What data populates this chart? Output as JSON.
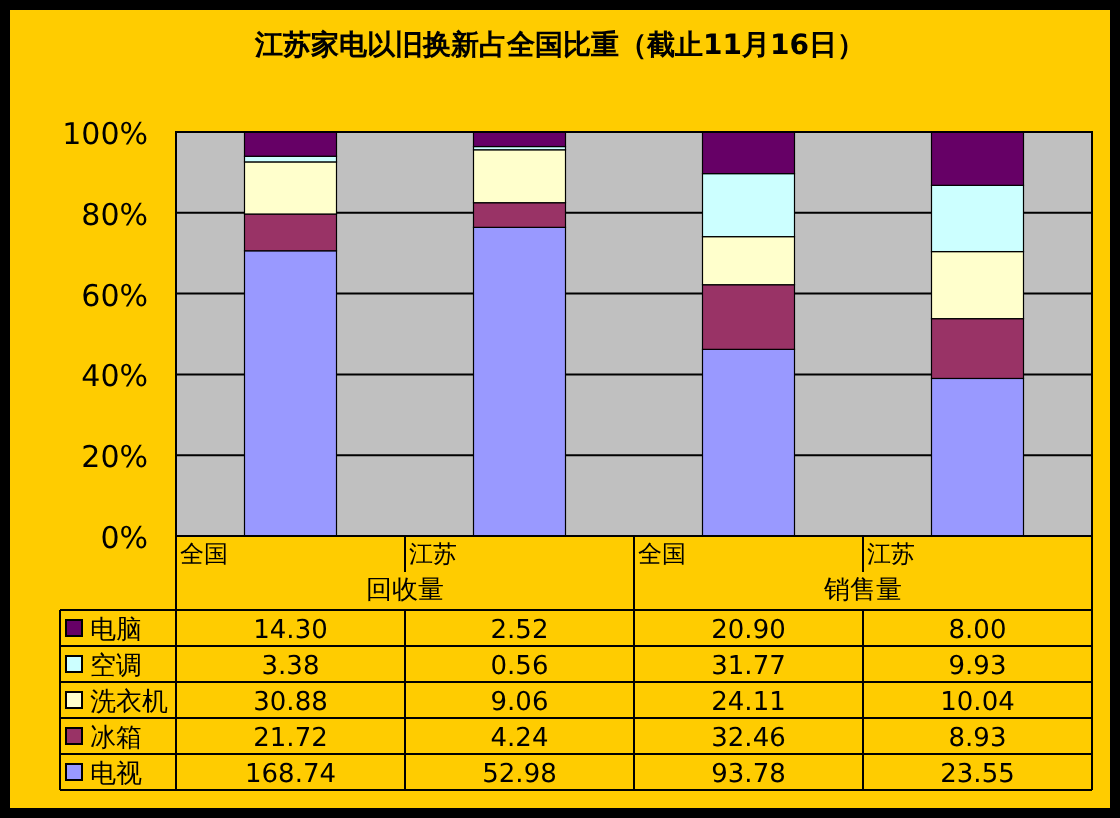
{
  "chart_data": {
    "type": "bar",
    "stacked": true,
    "title": "江苏家电以旧换新占全国比重（截止11月16日）",
    "categories": [
      "全国",
      "江苏",
      "全国",
      "江苏"
    ],
    "annotations": [
      "回收量",
      "销售量",
      "14.30",
      "2.52",
      "20.90",
      "8.00",
      "3.38",
      "0.56",
      "31.77",
      "9.93",
      "30.88",
      "9.06",
      "24.11",
      "10.04",
      "21.72",
      "4.24",
      "32.46",
      "8.93",
      "168.74",
      "52.98",
      "93.78",
      "23.55"
    ],
    "series": [
      {
        "name": "电视",
        "color": "#9999ff",
        "values": [
          70.6,
          76.4,
          46.2,
          39.0
        ]
      },
      {
        "name": "冰箱",
        "color": "#993366",
        "values": [
          9.1,
          6.1,
          16.0,
          14.8
        ]
      },
      {
        "name": "洗衣机",
        "color": "#ffffcc",
        "values": [
          12.9,
          13.1,
          11.9,
          16.6
        ]
      },
      {
        "name": "空调",
        "color": "#ccffff",
        "values": [
          1.4,
          0.8,
          15.6,
          16.4
        ]
      },
      {
        "name": "电脑",
        "color": "#660066",
        "values": [
          6.0,
          3.6,
          10.3,
          13.2
        ]
      }
    ],
    "ylim": [
      0,
      100
    ],
    "yticks": [
      {
        "value": 0,
        "label": "0%"
      },
      {
        "value": 20,
        "label": "20%"
      },
      {
        "value": 40,
        "label": "40%"
      },
      {
        "value": 60,
        "label": "60%"
      },
      {
        "value": 80,
        "label": "80%"
      },
      {
        "value": 100,
        "label": "100%"
      }
    ],
    "grid": "y",
    "legend": "bottom"
  }
}
